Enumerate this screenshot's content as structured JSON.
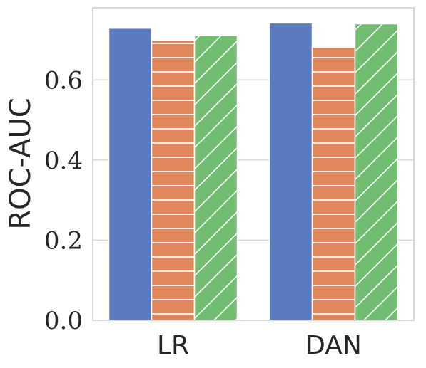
{
  "chart_data": {
    "type": "bar",
    "title": "",
    "xlabel": "",
    "ylabel": "ROC-AUC",
    "categories": [
      "LR",
      "DAN"
    ],
    "ylim": [
      0,
      0.78
    ],
    "yticks": [
      0.0,
      0.2,
      0.4,
      0.6
    ],
    "ytick_labels": [
      "0.0",
      "0.2",
      "0.4",
      "0.6"
    ],
    "grid": "horizontal",
    "legend": "none",
    "series": [
      {
        "values": [
          0.729,
          0.742
        ],
        "color": "#5a7bc0",
        "pattern": "solid"
      },
      {
        "values": [
          0.699,
          0.682
        ],
        "color": "#e0885c",
        "pattern": "horizontal-hatch"
      },
      {
        "values": [
          0.711,
          0.74
        ],
        "color": "#72bd72",
        "pattern": "diagonal-hatch"
      }
    ]
  }
}
